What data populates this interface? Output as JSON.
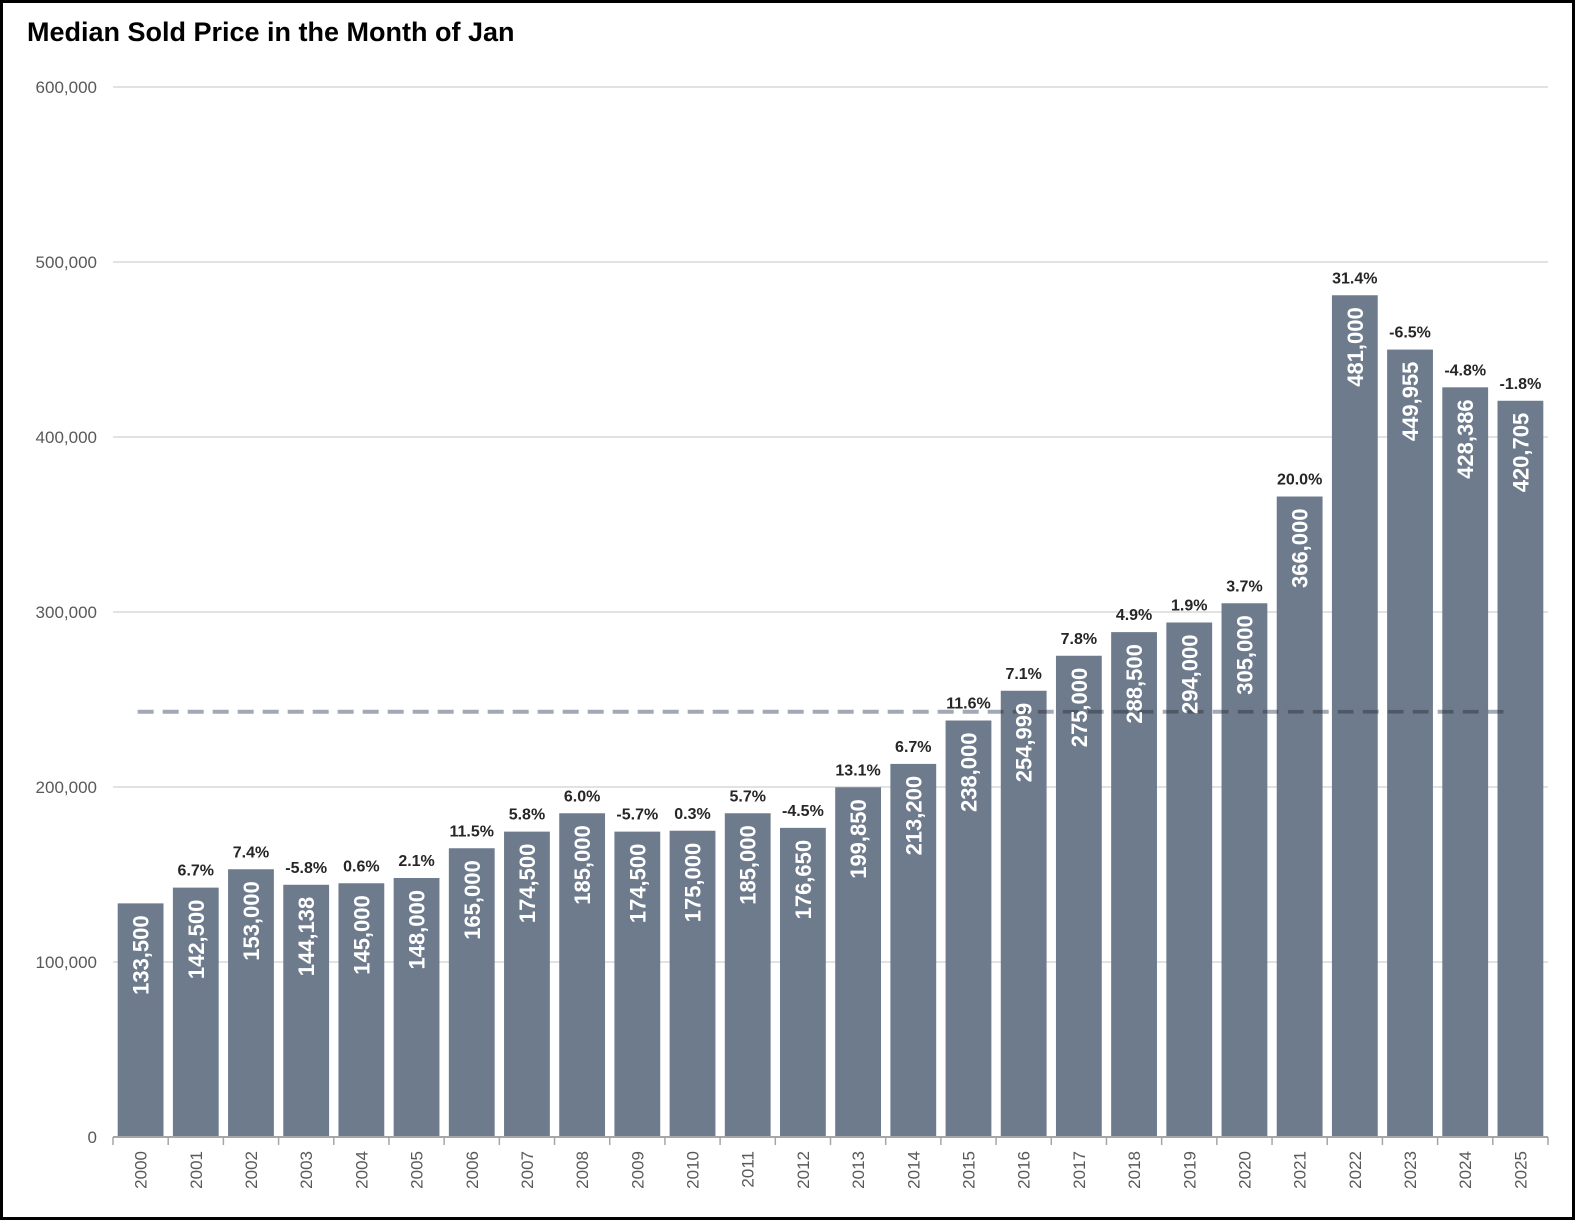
{
  "chart_data": {
    "type": "bar",
    "title": "Median Sold Price in the Month of Jan",
    "xlabel": "",
    "ylabel": "",
    "ylim": [
      0,
      600000
    ],
    "yticks": [
      0,
      100000,
      200000,
      300000,
      400000,
      500000,
      600000
    ],
    "ytick_labels": [
      "0",
      "100,000",
      "200,000",
      "300,000",
      "400,000",
      "500,000",
      "600,000"
    ],
    "grid": true,
    "legend": "none",
    "categories": [
      "2000",
      "2001",
      "2002",
      "2003",
      "2004",
      "2005",
      "2006",
      "2007",
      "2008",
      "2009",
      "2010",
      "2011",
      "2012",
      "2013",
      "2014",
      "2015",
      "2016",
      "2017",
      "2018",
      "2019",
      "2020",
      "2021",
      "2022",
      "2023",
      "2024",
      "2025"
    ],
    "values": [
      133500,
      142500,
      153000,
      144138,
      145000,
      148000,
      165000,
      174500,
      185000,
      174500,
      175000,
      185000,
      176650,
      199850,
      213200,
      238000,
      254999,
      275000,
      288500,
      294000,
      305000,
      366000,
      481000,
      449955,
      428386,
      420705
    ],
    "value_labels": [
      "133,500",
      "142,500",
      "153,000",
      "144,138",
      "145,000",
      "148,000",
      "165,000",
      "174,500",
      "185,000",
      "174,500",
      "175,000",
      "185,000",
      "176,650",
      "199,850",
      "213,200",
      "238,000",
      "254,999",
      "275,000",
      "288,500",
      "294,000",
      "305,000",
      "366,000",
      "481,000",
      "449,955",
      "428,386",
      "420,705"
    ],
    "annotations": [
      "",
      "6.7%",
      "7.4%",
      "-5.8%",
      "0.6%",
      "2.1%",
      "11.5%",
      "5.8%",
      "6.0%",
      "-5.7%",
      "0.3%",
      "5.7%",
      "-4.5%",
      "13.1%",
      "6.7%",
      "11.6%",
      "7.1%",
      "7.8%",
      "4.9%",
      "1.9%",
      "3.7%",
      "20.0%",
      "31.4%",
      "-6.5%",
      "-4.8%",
      "-1.8%"
    ],
    "reference_line": {
      "y": 243000,
      "style": "dashed"
    },
    "colors": {
      "bar": "#6E7B8D",
      "grid": "#D9D9D9",
      "axis": "#A6A6A6",
      "reference": "#A2A9B4",
      "reference_over_bar": "#4F5866"
    }
  }
}
